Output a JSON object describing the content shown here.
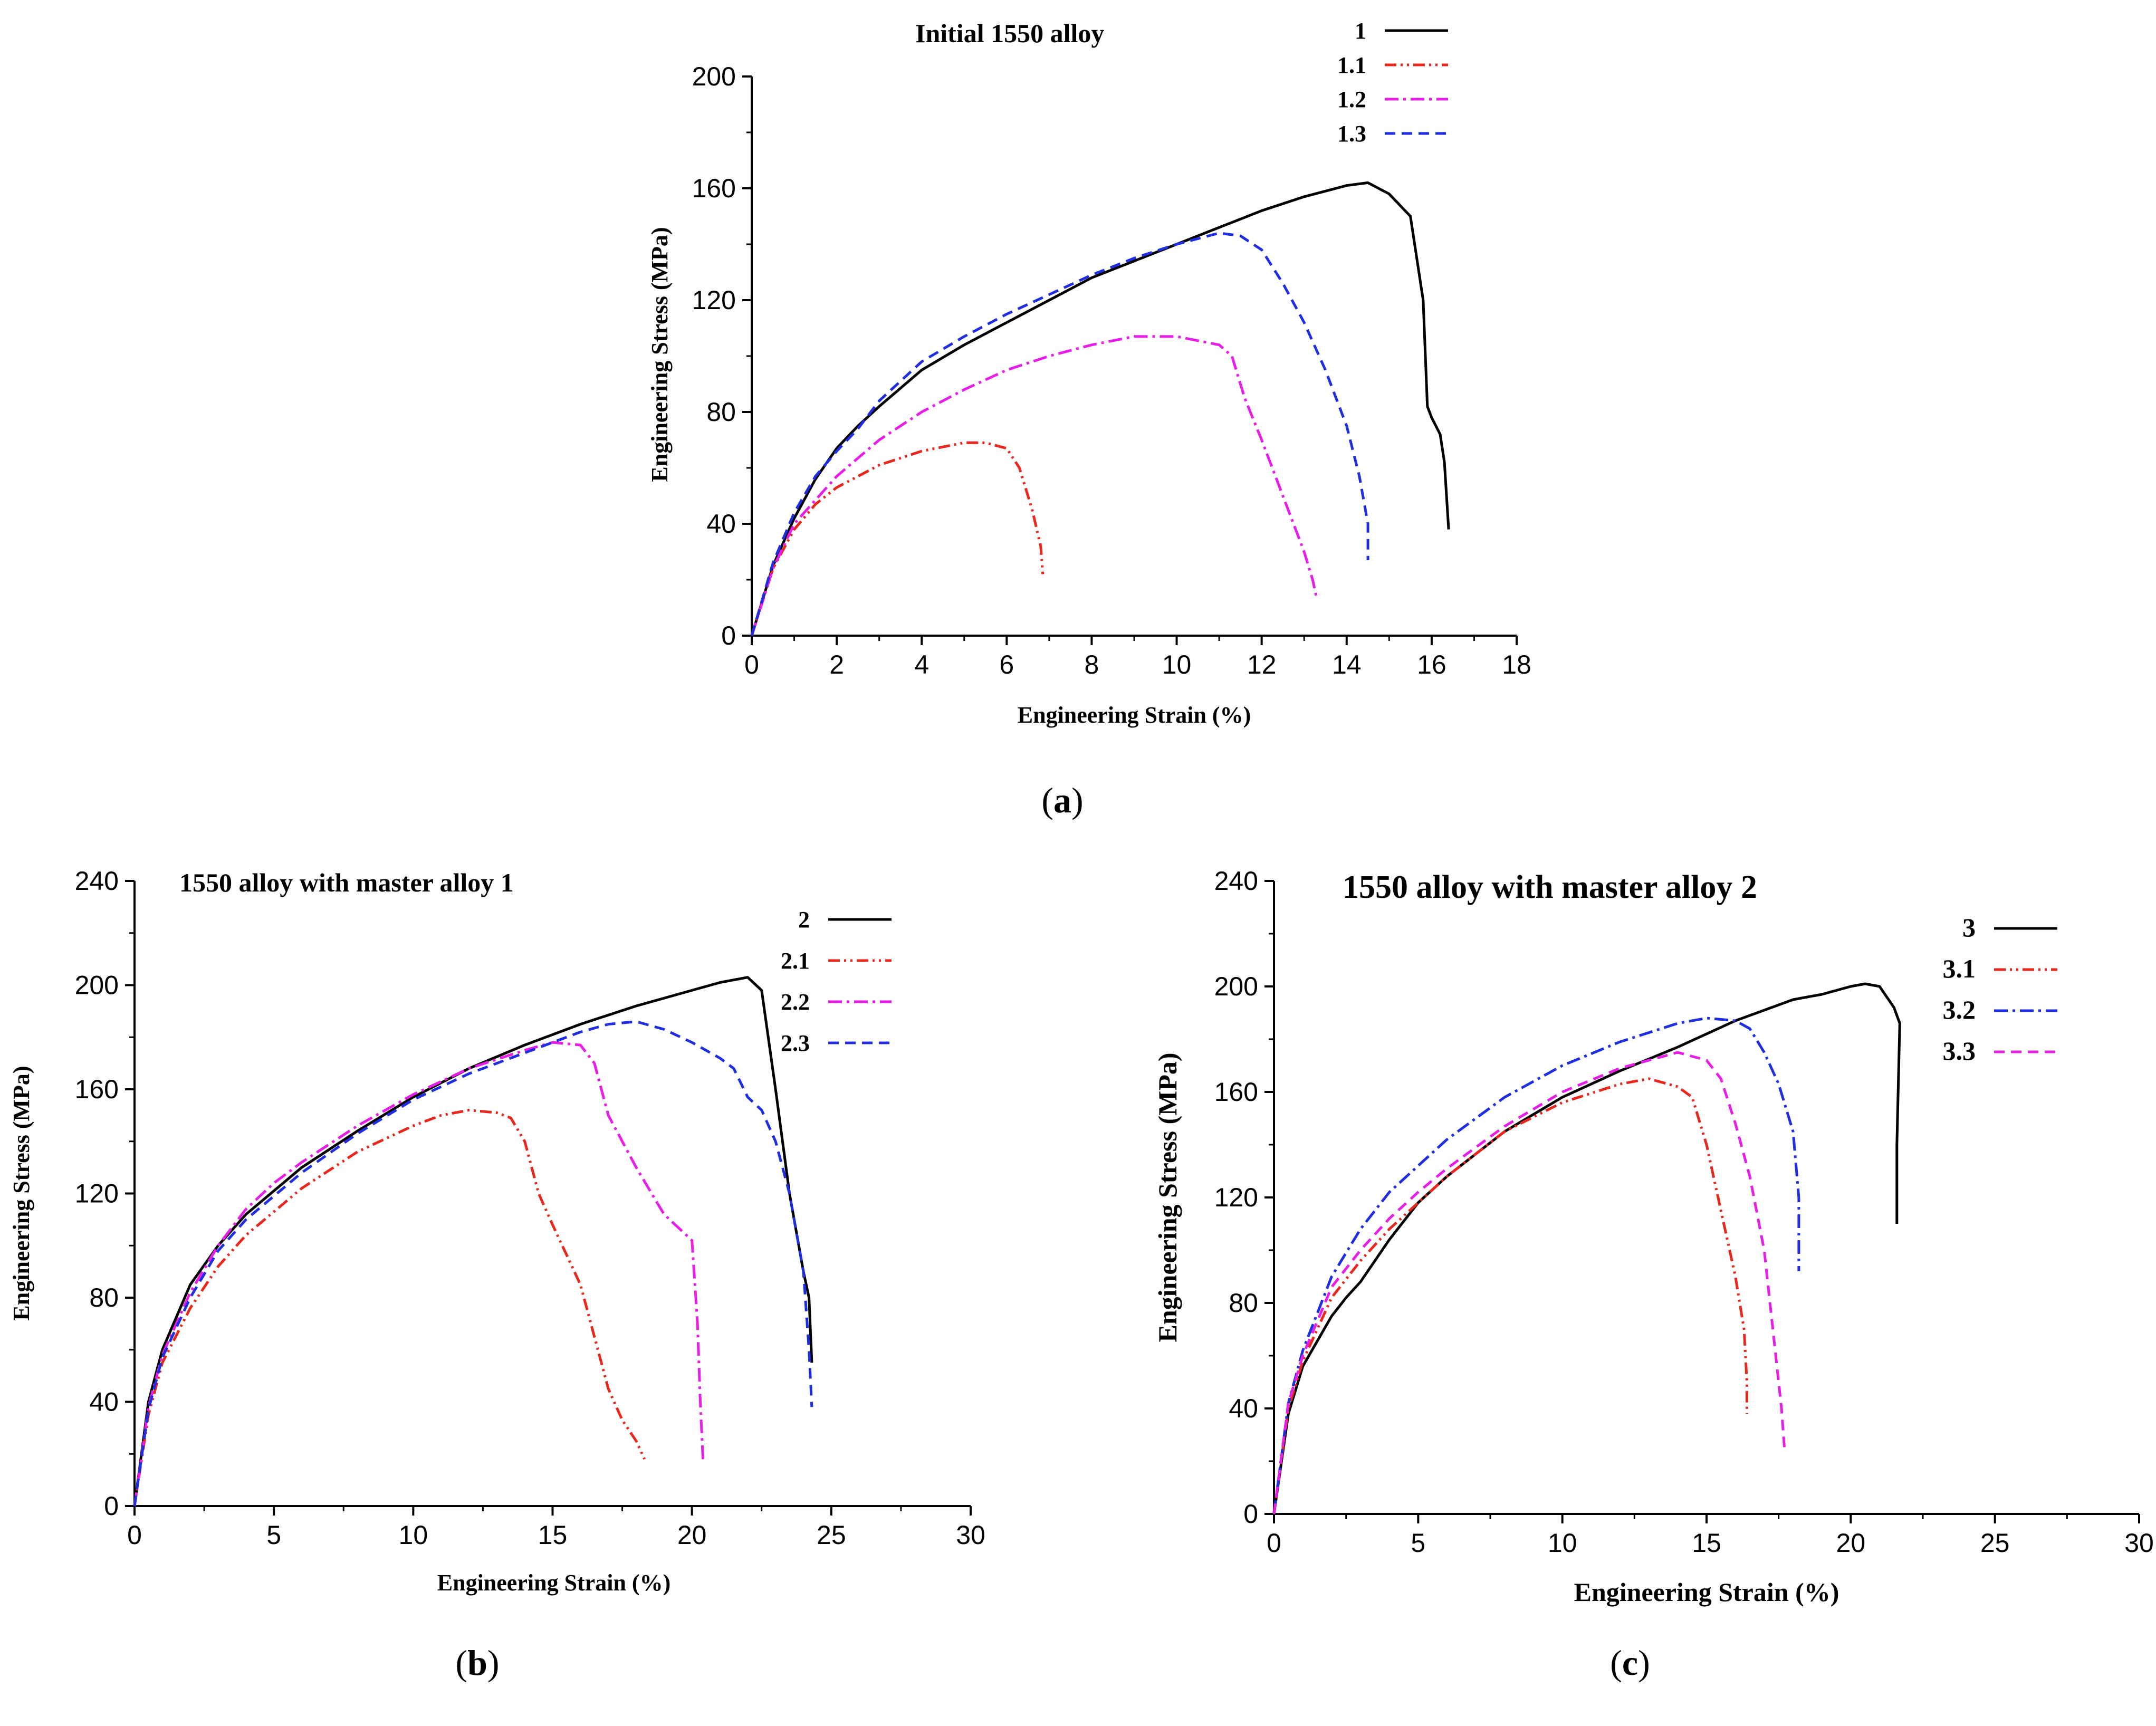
{
  "chart_data": [
    {
      "type": "line",
      "title": "Initial 1550 alloy",
      "xlabel": "Engineering Strain (%)",
      "ylabel": "Engineering Stress (MPa)",
      "xlim": [
        0,
        18
      ],
      "ylim": [
        0,
        200
      ],
      "xticks": [
        0,
        2,
        4,
        6,
        8,
        10,
        12,
        14,
        16,
        18
      ],
      "yticks": [
        0,
        40,
        80,
        120,
        160,
        200
      ],
      "caption_letter": "a",
      "legend_position": "top-right",
      "series": [
        {
          "name": "1",
          "color": "#000000",
          "x": [
            0,
            0.5,
            1,
            1.5,
            2,
            2.5,
            3,
            4,
            5,
            6,
            7,
            8,
            9,
            10,
            11,
            12,
            13,
            14,
            14.5,
            15,
            15.5,
            15.8,
            15.9,
            16,
            16.2,
            16.3,
            16.4
          ],
          "y": [
            0,
            25,
            42,
            56,
            67,
            75,
            82,
            95,
            104,
            112,
            120,
            128,
            134,
            140,
            146,
            152,
            157,
            161,
            162,
            158,
            150,
            120,
            82,
            78,
            72,
            62,
            38
          ]
        },
        {
          "name": "1.1",
          "color": "#e8271d",
          "x": [
            0,
            0.5,
            1,
            1.5,
            2,
            3,
            4,
            5,
            5.5,
            6,
            6.3,
            6.6,
            6.8,
            6.85
          ],
          "y": [
            0,
            24,
            38,
            47,
            53,
            61,
            66,
            69,
            69,
            67,
            60,
            45,
            32,
            22
          ]
        },
        {
          "name": "1.2",
          "color": "#e61ee6",
          "x": [
            0,
            0.5,
            1,
            2,
            3,
            4,
            5,
            6,
            7,
            8,
            9,
            10,
            11,
            11.3,
            11.6,
            12,
            12.5,
            13,
            13.2,
            13.3
          ],
          "y": [
            0,
            24,
            40,
            57,
            70,
            80,
            88,
            95,
            100,
            104,
            107,
            107,
            104,
            100,
            85,
            70,
            50,
            30,
            20,
            13
          ]
        },
        {
          "name": "1.3",
          "color": "#1f2ee0",
          "x": [
            0,
            0.5,
            1,
            1.5,
            2,
            2.5,
            3,
            4,
            5,
            6,
            7,
            8,
            9,
            10,
            10.5,
            11,
            11.5,
            12,
            12.5,
            13,
            13.5,
            14,
            14.3,
            14.5,
            14.5
          ],
          "y": [
            0,
            26,
            44,
            57,
            66,
            74,
            84,
            98,
            107,
            115,
            122,
            129,
            135,
            140,
            142,
            144,
            143,
            138,
            126,
            112,
            95,
            75,
            57,
            40,
            27
          ]
        }
      ]
    },
    {
      "type": "line",
      "title": "1550 alloy with master alloy 1",
      "xlabel": "Engineering Strain (%)",
      "ylabel": "Engineering Stress (MPa)",
      "xlim": [
        0,
        30
      ],
      "ylim": [
        0,
        240
      ],
      "xticks": [
        0,
        5,
        10,
        15,
        20,
        25,
        30
      ],
      "yticks": [
        0,
        40,
        80,
        120,
        160,
        200,
        240
      ],
      "caption_letter": "b",
      "legend_position": "top-right",
      "series": [
        {
          "name": "2",
          "color": "#000000",
          "x": [
            0,
            0.5,
            1,
            2,
            3,
            4,
            5,
            6,
            8,
            10,
            12,
            14,
            16,
            18,
            20,
            21,
            22,
            22.5,
            23,
            23.5,
            24,
            24.2,
            24.3
          ],
          "y": [
            0,
            40,
            60,
            85,
            100,
            112,
            121,
            130,
            144,
            157,
            168,
            177,
            185,
            192,
            198,
            201,
            203,
            198,
            160,
            120,
            90,
            80,
            55
          ]
        },
        {
          "name": "2.1",
          "color": "#e8271d",
          "x": [
            0,
            0.5,
            1,
            2,
            3,
            4,
            5,
            6,
            8,
            10,
            11,
            12,
            13,
            13.5,
            14,
            14.5,
            15,
            16,
            16.5,
            17,
            17.5,
            18,
            18.3
          ],
          "y": [
            0,
            35,
            55,
            76,
            92,
            104,
            113,
            122,
            136,
            146,
            150,
            152,
            151,
            149,
            140,
            120,
            108,
            85,
            65,
            45,
            33,
            25,
            18
          ]
        },
        {
          "name": "2.2",
          "color": "#e61ee6",
          "x": [
            0,
            0.5,
            1,
            2,
            3,
            4,
            5,
            6,
            8,
            10,
            12,
            14,
            15,
            16,
            16.5,
            17,
            18,
            19,
            20,
            20.2,
            20.3,
            20.4
          ],
          "y": [
            0,
            38,
            58,
            82,
            100,
            114,
            124,
            132,
            146,
            158,
            168,
            175,
            178,
            177,
            170,
            150,
            130,
            112,
            102,
            70,
            40,
            17
          ]
        },
        {
          "name": "2.3",
          "color": "#1f2ee0",
          "x": [
            0,
            0.5,
            1,
            2,
            3,
            4,
            5,
            6,
            8,
            10,
            12,
            14,
            16,
            17,
            18,
            19,
            20,
            21,
            21.5,
            22,
            22.5,
            23,
            23.5,
            24,
            24.2,
            24.3
          ],
          "y": [
            0,
            37,
            57,
            80,
            98,
            110,
            119,
            128,
            143,
            156,
            166,
            174,
            182,
            185,
            186,
            183,
            178,
            172,
            168,
            157,
            152,
            140,
            120,
            90,
            60,
            38
          ]
        }
      ]
    },
    {
      "type": "line",
      "title": "1550 alloy with master alloy 2",
      "xlabel": "Engineering Strain (%)",
      "ylabel": "Engineering Stress (MPa)",
      "xlim": [
        0,
        30
      ],
      "ylim": [
        0,
        240
      ],
      "xticks": [
        0,
        5,
        10,
        15,
        20,
        25,
        30
      ],
      "yticks": [
        0,
        40,
        80,
        120,
        160,
        200,
        240
      ],
      "caption_letter": "c",
      "legend_position": "top-right",
      "series": [
        {
          "name": "3",
          "color": "#000000",
          "x": [
            0,
            0.5,
            1,
            2,
            2.5,
            3,
            4,
            5,
            6,
            8,
            10,
            12,
            14,
            16,
            18,
            19,
            20,
            20.5,
            21,
            21.5,
            21.7,
            21.6,
            21.6
          ],
          "y": [
            0,
            38,
            56,
            75,
            82,
            88,
            104,
            118,
            128,
            145,
            158,
            168,
            177,
            187,
            195,
            197,
            200,
            201,
            200,
            192,
            186,
            140,
            110
          ]
        },
        {
          "name": "3.1",
          "color": "#e8271d",
          "x": [
            0,
            0.5,
            1,
            2,
            3,
            4,
            5,
            6,
            8,
            10,
            12,
            13,
            14,
            14.5,
            15,
            15.5,
            16,
            16.3,
            16.4,
            16.4
          ],
          "y": [
            0,
            40,
            58,
            82,
            96,
            108,
            118,
            128,
            145,
            156,
            163,
            165,
            162,
            158,
            140,
            115,
            90,
            70,
            50,
            38
          ]
        },
        {
          "name": "3.2",
          "color": "#1f2ee0",
          "x": [
            0,
            0.5,
            1,
            2,
            3,
            4,
            5,
            6,
            8,
            10,
            12,
            14,
            15,
            16,
            16.5,
            17,
            17.5,
            18,
            18.2,
            18.2
          ],
          "y": [
            0,
            42,
            62,
            90,
            108,
            122,
            132,
            142,
            158,
            170,
            179,
            186,
            188,
            187,
            184,
            175,
            163,
            145,
            120,
            92
          ]
        },
        {
          "name": "3.3",
          "color": "#e61ee6",
          "x": [
            0,
            0.5,
            1,
            2,
            3,
            4,
            5,
            6,
            8,
            10,
            12,
            13,
            14,
            15,
            15.5,
            16,
            16.5,
            17,
            17.3,
            17.6,
            17.7
          ],
          "y": [
            0,
            42,
            60,
            86,
            100,
            112,
            122,
            131,
            147,
            160,
            169,
            172,
            175,
            172,
            165,
            148,
            128,
            100,
            70,
            40,
            25
          ]
        }
      ]
    }
  ]
}
